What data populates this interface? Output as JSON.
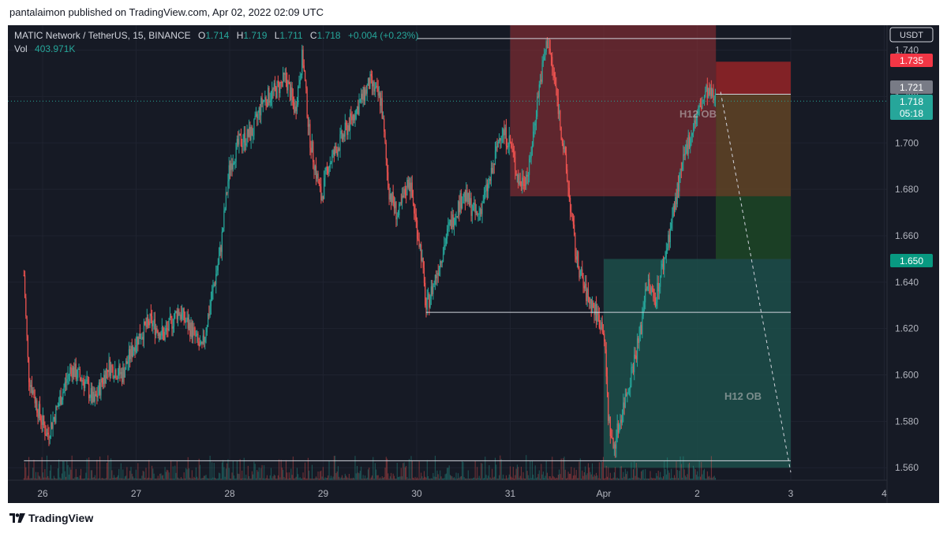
{
  "header": {
    "published": "pantalaimon published on TradingView.com, Apr 02, 2022 02:09 UTC"
  },
  "legend": {
    "symbol": "MATIC Network / TetherUS, 15, BINANCE",
    "o_label": "O",
    "o_value": "1.714",
    "h_label": "H",
    "h_value": "1.719",
    "l_label": "L",
    "l_value": "1.711",
    "c_label": "C",
    "c_value": "1.718",
    "change": "+0.004 (+0.23%)",
    "vol_label": "Vol",
    "vol_value": "403.971K"
  },
  "price_scale": {
    "currency": "USDT",
    "badges": {
      "red": "1.735",
      "gray": "1.721",
      "last": "1.718",
      "countdown": "05:18",
      "green": "1.650"
    }
  },
  "annotations": {
    "ob_upper": "H12 OB",
    "ob_lower": "H12 OB"
  },
  "footer": {
    "brand": "TradingView"
  },
  "colors": {
    "background": "#161a25",
    "up": "#26a69a",
    "down": "#ef5350",
    "bearish_zone": "#7b2d30",
    "bullish_zone": "#1d4e49"
  },
  "chart_data": {
    "type": "candlestick",
    "interval": "15",
    "ylim": [
      1.556,
      1.748
    ],
    "y_ticks": [
      "1.740",
      "1.720",
      "1.700",
      "1.680",
      "1.660",
      "1.640",
      "1.620",
      "1.600",
      "1.580",
      "1.560"
    ],
    "x_ticks": [
      "26",
      "27",
      "28",
      "29",
      "30",
      "31",
      "Apr",
      "2",
      "3",
      "4"
    ],
    "price_path": [
      [
        25.8,
        1.643
      ],
      [
        25.85,
        1.6
      ],
      [
        25.95,
        1.585
      ],
      [
        26.05,
        1.574
      ],
      [
        26.15,
        1.585
      ],
      [
        26.3,
        1.603
      ],
      [
        26.45,
        1.597
      ],
      [
        26.55,
        1.588
      ],
      [
        26.7,
        1.604
      ],
      [
        26.85,
        1.6
      ],
      [
        27.0,
        1.615
      ],
      [
        27.15,
        1.623
      ],
      [
        27.3,
        1.617
      ],
      [
        27.45,
        1.628
      ],
      [
        27.6,
        1.619
      ],
      [
        27.7,
        1.61
      ],
      [
        27.8,
        1.632
      ],
      [
        27.9,
        1.653
      ],
      [
        28.0,
        1.69
      ],
      [
        28.1,
        1.7
      ],
      [
        28.25,
        1.705
      ],
      [
        28.35,
        1.718
      ],
      [
        28.5,
        1.723
      ],
      [
        28.6,
        1.728
      ],
      [
        28.7,
        1.714
      ],
      [
        28.78,
        1.738
      ],
      [
        28.85,
        1.704
      ],
      [
        28.92,
        1.688
      ],
      [
        28.98,
        1.676
      ],
      [
        29.05,
        1.69
      ],
      [
        29.2,
        1.702
      ],
      [
        29.35,
        1.714
      ],
      [
        29.5,
        1.726
      ],
      [
        29.62,
        1.718
      ],
      [
        29.7,
        1.68
      ],
      [
        29.8,
        1.668
      ],
      [
        29.92,
        1.685
      ],
      [
        30.0,
        1.664
      ],
      [
        30.05,
        1.652
      ],
      [
        30.1,
        1.628
      ],
      [
        30.2,
        1.642
      ],
      [
        30.35,
        1.664
      ],
      [
        30.5,
        1.678
      ],
      [
        30.65,
        1.668
      ],
      [
        30.8,
        1.686
      ],
      [
        30.9,
        1.706
      ],
      [
        31.0,
        1.7
      ],
      [
        31.1,
        1.682
      ],
      [
        31.2,
        1.688
      ],
      [
        31.3,
        1.722
      ],
      [
        31.4,
        1.745
      ],
      [
        31.5,
        1.72
      ],
      [
        31.6,
        1.688
      ],
      [
        31.7,
        1.652
      ],
      [
        31.8,
        1.636
      ],
      [
        31.9,
        1.628
      ],
      [
        32.0,
        1.62
      ],
      [
        32.05,
        1.582
      ],
      [
        32.1,
        1.568
      ],
      [
        32.2,
        1.585
      ],
      [
        32.3,
        1.602
      ],
      [
        32.4,
        1.62
      ],
      [
        32.45,
        1.64
      ],
      [
        32.55,
        1.633
      ],
      [
        32.65,
        1.65
      ],
      [
        32.8,
        1.682
      ],
      [
        32.9,
        1.7
      ],
      [
        33.0,
        1.712
      ],
      [
        33.1,
        1.722
      ],
      [
        33.2,
        1.718
      ]
    ],
    "zones": [
      {
        "name": "bearish order block",
        "x0": 31.0,
        "x1": 33.2,
        "y0": 1.677,
        "y1": 1.752
      },
      {
        "name": "bullish order block",
        "x0": 32.0,
        "x1": 34.0,
        "y0": 1.56,
        "y1": 1.65
      },
      {
        "name": "short position risk",
        "x0": 33.2,
        "x1": 34.0,
        "y0": 1.721,
        "y1": 1.735
      },
      {
        "name": "short position reward",
        "x0": 33.2,
        "x1": 34.0,
        "y0": 1.65,
        "y1": 1.721
      }
    ],
    "levels": [
      {
        "name": "resistance",
        "x0": 30.0,
        "x1": 34.0,
        "y": 1.745
      },
      {
        "name": "mid support",
        "x0": 30.1,
        "x1": 34.0,
        "y": 1.627
      },
      {
        "name": "low support",
        "x0": 25.8,
        "x1": 34.0,
        "y": 1.563
      },
      {
        "name": "entry",
        "x0": 33.2,
        "x1": 34.0,
        "y": 1.721
      }
    ],
    "projection": {
      "x0": 33.25,
      "y0": 1.722,
      "x1": 34.0,
      "y1": 1.558
    }
  }
}
